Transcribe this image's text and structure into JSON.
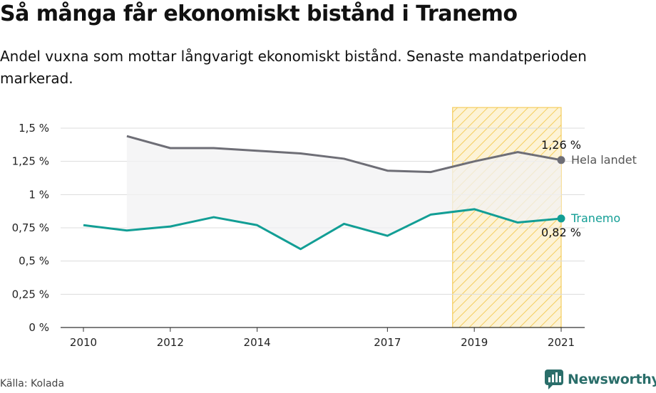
{
  "title": "Så många får ekonomiskt bistånd i Tranemo",
  "subtitle": "Andel vuxna som mottar långvarigt ekonomiskt bistånd. Senaste mandatperioden markerad.",
  "source": "Källa: Kolada",
  "brand": {
    "name": "Newsworthy",
    "icon": "newsworthy-logo-icon"
  },
  "colors": {
    "tranemo": "#129e95",
    "landet": "#6e6e76",
    "highlight": "#f4cd5e",
    "grid": "#dcdcdc"
  },
  "chart_data": {
    "type": "line",
    "x": [
      2010,
      2011,
      2012,
      2013,
      2014,
      2015,
      2016,
      2017,
      2018,
      2019,
      2020,
      2021
    ],
    "xticks": [
      {
        "value": 2010,
        "label": "2010"
      },
      {
        "value": 2012,
        "label": "2012"
      },
      {
        "value": 2014,
        "label": "2014"
      },
      {
        "value": 2017,
        "label": "2017"
      },
      {
        "value": 2019,
        "label": "2019"
      },
      {
        "value": 2021,
        "label": "2021"
      }
    ],
    "yticks": [
      {
        "value": 0,
        "label": "0 %"
      },
      {
        "value": 0.25,
        "label": "0,25 %"
      },
      {
        "value": 0.5,
        "label": "0,5 %"
      },
      {
        "value": 0.75,
        "label": "0,75 %"
      },
      {
        "value": 1,
        "label": "1 %"
      },
      {
        "value": 1.25,
        "label": "1,25 %"
      },
      {
        "value": 1.5,
        "label": "1,5 %"
      }
    ],
    "xlim": [
      2010,
      2021
    ],
    "ylim": [
      0,
      1.5
    ],
    "highlight_range": [
      2018.5,
      2021
    ],
    "series": [
      {
        "name": "Hela landet",
        "values": [
          null,
          1.44,
          1.35,
          1.35,
          1.33,
          1.31,
          1.27,
          1.18,
          1.17,
          1.25,
          1.32,
          1.26
        ],
        "end_label": "1,26 %"
      },
      {
        "name": "Tranemo",
        "values": [
          0.77,
          0.73,
          0.76,
          0.83,
          0.77,
          0.59,
          0.78,
          0.69,
          0.85,
          0.89,
          0.79,
          0.82
        ],
        "end_label": "0,82 %"
      }
    ],
    "grid": "horizontal",
    "legend": "end-of-line labels"
  }
}
